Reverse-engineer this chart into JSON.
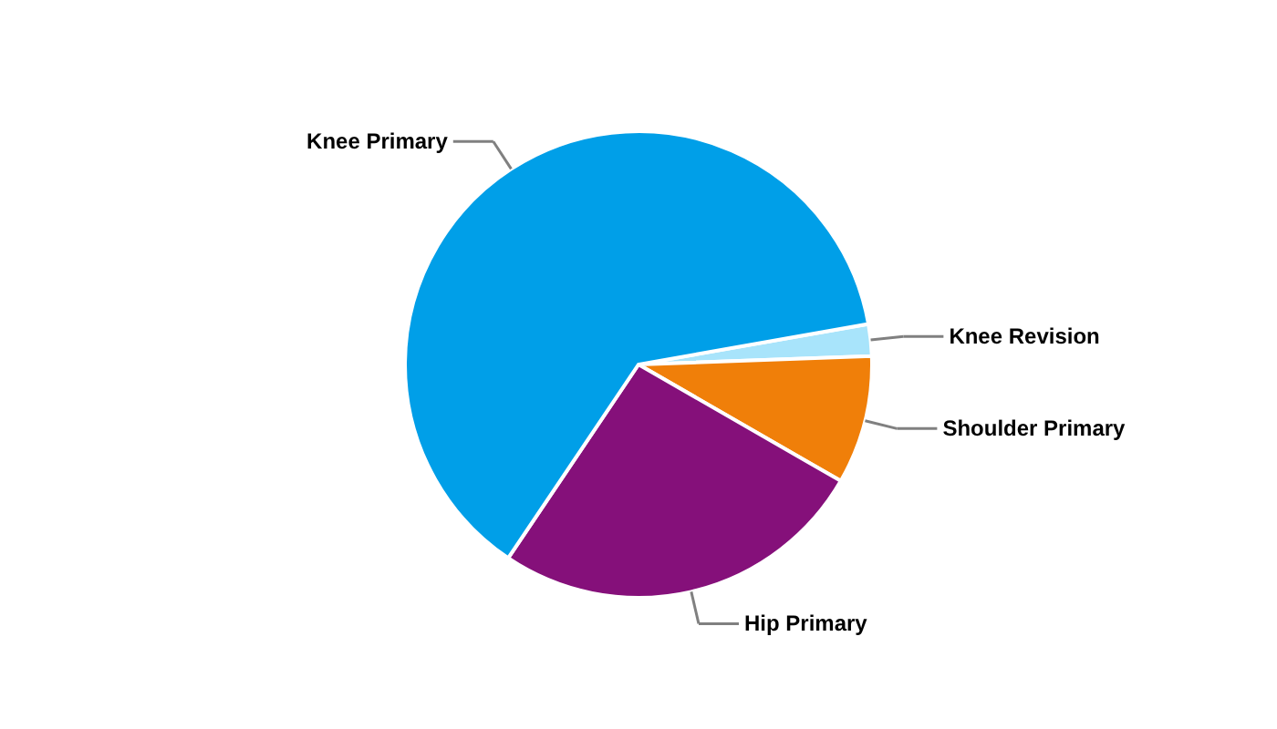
{
  "chart_data": {
    "type": "pie",
    "categories": [
      "Knee Revision",
      "Shoulder Primary",
      "Hip Primary",
      "Knee Primary"
    ],
    "values": [
      2.2,
      8.9,
      26.1,
      62.8
    ],
    "colors": [
      "#a8e4fb",
      "#f07f09",
      "#85107a",
      "#009fe8"
    ]
  }
}
